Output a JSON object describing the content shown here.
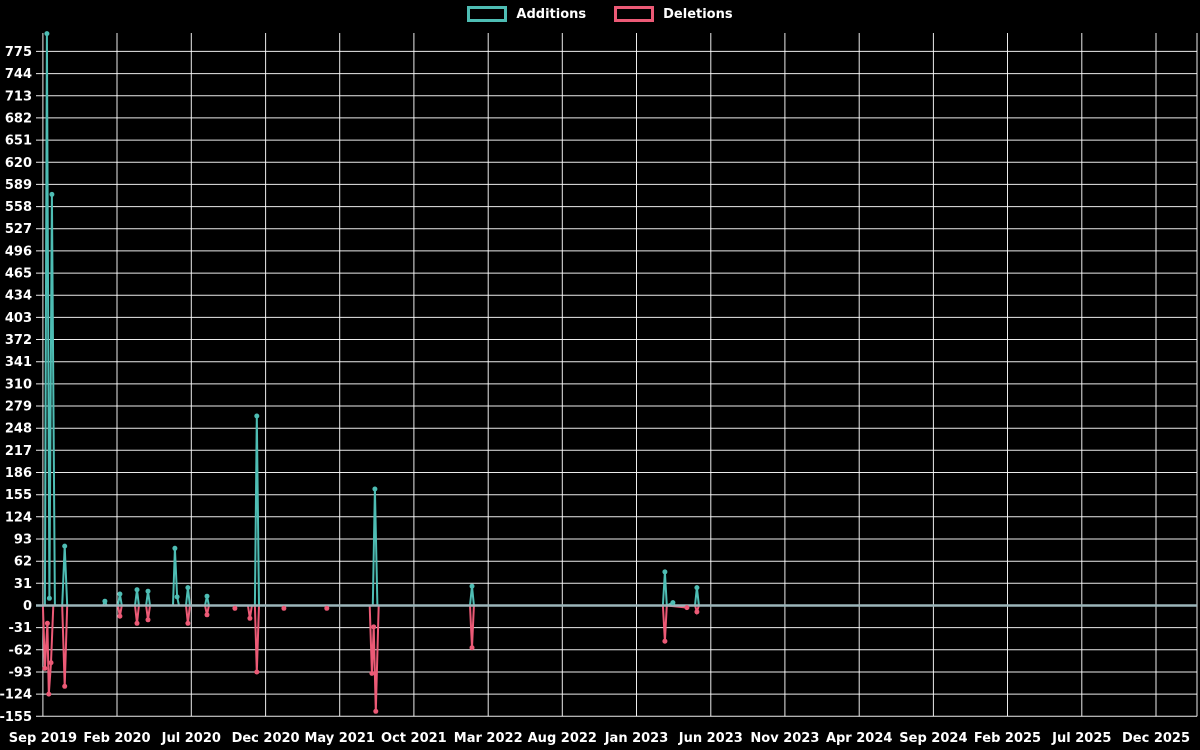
{
  "legend": {
    "items": [
      {
        "label": "Additions",
        "color": "#4ebdb4"
      },
      {
        "label": "Deletions",
        "color": "#ec5a76"
      }
    ]
  },
  "chart_data": {
    "type": "line",
    "title": "",
    "xlabel": "",
    "ylabel": "",
    "legend_position": "top",
    "grid": true,
    "background": "#000000",
    "grid_color": "rgba(255,255,255,0.92)",
    "zero_line_color": "#9cb6ba",
    "text_color": "#ffffff",
    "y_ticks": [
      775,
      744,
      713,
      682,
      651,
      620,
      589,
      558,
      527,
      496,
      465,
      434,
      403,
      372,
      341,
      310,
      279,
      248,
      217,
      186,
      155,
      124,
      93,
      62,
      31,
      0,
      -31,
      -62,
      -93,
      -124,
      -155
    ],
    "x_ticks": [
      {
        "label": "Sep 2019",
        "t": 2019.667
      },
      {
        "label": "Feb 2020",
        "t": 2020.083
      },
      {
        "label": "Jul 2020",
        "t": 2020.5
      },
      {
        "label": "Dec 2020",
        "t": 2020.917
      },
      {
        "label": "May 2021",
        "t": 2021.333
      },
      {
        "label": "Oct 2021",
        "t": 2021.75
      },
      {
        "label": "Mar 2022",
        "t": 2022.167
      },
      {
        "label": "Aug 2022",
        "t": 2022.583
      },
      {
        "label": "Jan 2023",
        "t": 2023.0
      },
      {
        "label": "Jun 2023",
        "t": 2023.417
      },
      {
        "label": "Nov 2023",
        "t": 2023.833
      },
      {
        "label": "Apr 2024",
        "t": 2024.25
      },
      {
        "label": "Sep 2024",
        "t": 2024.667
      },
      {
        "label": "Feb 2025",
        "t": 2025.083
      },
      {
        "label": "Jul 2025",
        "t": 2025.5
      },
      {
        "label": "Dec 2025",
        "t": 2025.917
      }
    ],
    "x_range": [
      2019.628,
      2026.147
    ],
    "y_range": [
      -163,
      805
    ],
    "series": [
      {
        "name": "Additions",
        "color": "#4ebdb4",
        "points": [
          [
            2019.628,
            0
          ],
          [
            2019.667,
            0
          ],
          [
            2019.678,
            0
          ],
          [
            2019.689,
            800
          ],
          [
            2019.703,
            10
          ],
          [
            2019.717,
            575
          ],
          [
            2019.734,
            0
          ],
          [
            2019.775,
            0
          ],
          [
            2019.789,
            83
          ],
          [
            2019.803,
            0
          ],
          [
            2020.005,
            0
          ],
          [
            2020.015,
            6
          ],
          [
            2020.025,
            0
          ],
          [
            2020.088,
            0
          ],
          [
            2020.099,
            16
          ],
          [
            2020.11,
            0
          ],
          [
            2020.184,
            0
          ],
          [
            2020.195,
            22
          ],
          [
            2020.206,
            0
          ],
          [
            2020.246,
            0
          ],
          [
            2020.257,
            20
          ],
          [
            2020.268,
            0
          ],
          [
            2020.397,
            0
          ],
          [
            2020.408,
            80
          ],
          [
            2020.42,
            12
          ],
          [
            2020.431,
            0
          ],
          [
            2020.47,
            0
          ],
          [
            2020.481,
            25
          ],
          [
            2020.492,
            0
          ],
          [
            2020.577,
            0
          ],
          [
            2020.588,
            13
          ],
          [
            2020.599,
            0
          ],
          [
            2020.857,
            0
          ],
          [
            2020.868,
            265
          ],
          [
            2020.88,
            0
          ],
          [
            2021.519,
            0
          ],
          [
            2021.531,
            163
          ],
          [
            2021.545,
            0
          ],
          [
            2022.065,
            0
          ],
          [
            2022.076,
            27
          ],
          [
            2022.087,
            0
          ],
          [
            2023.148,
            0
          ],
          [
            2023.159,
            47
          ],
          [
            2023.17,
            0
          ],
          [
            2023.204,
            4
          ],
          [
            2023.215,
            0
          ],
          [
            2023.328,
            0
          ],
          [
            2023.339,
            25
          ],
          [
            2023.35,
            0
          ],
          [
            2026.147,
            0
          ]
        ]
      },
      {
        "name": "Deletions",
        "color": "#ec5a76",
        "points": [
          [
            2019.628,
            0
          ],
          [
            2019.667,
            0
          ],
          [
            2019.678,
            -88
          ],
          [
            2019.692,
            -25
          ],
          [
            2019.7,
            -124
          ],
          [
            2019.712,
            -80
          ],
          [
            2019.725,
            0
          ],
          [
            2019.775,
            0
          ],
          [
            2019.789,
            -113
          ],
          [
            2019.803,
            0
          ],
          [
            2020.088,
            0
          ],
          [
            2020.099,
            -15
          ],
          [
            2020.11,
            0
          ],
          [
            2020.184,
            0
          ],
          [
            2020.195,
            -25
          ],
          [
            2020.206,
            0
          ],
          [
            2020.246,
            0
          ],
          [
            2020.257,
            -20
          ],
          [
            2020.268,
            0
          ],
          [
            2020.47,
            0
          ],
          [
            2020.481,
            -25
          ],
          [
            2020.492,
            0
          ],
          [
            2020.577,
            0
          ],
          [
            2020.588,
            -13
          ],
          [
            2020.599,
            0
          ],
          [
            2020.74,
            0
          ],
          [
            2020.745,
            -4
          ],
          [
            2020.752,
            0
          ],
          [
            2020.818,
            0
          ],
          [
            2020.829,
            -18
          ],
          [
            2020.84,
            0
          ],
          [
            2020.857,
            0
          ],
          [
            2020.868,
            -93
          ],
          [
            2020.88,
            0
          ],
          [
            2021.012,
            0
          ],
          [
            2021.02,
            -4
          ],
          [
            2021.03,
            0
          ],
          [
            2021.255,
            0
          ],
          [
            2021.261,
            -4
          ],
          [
            2021.27,
            0
          ],
          [
            2021.502,
            0
          ],
          [
            2021.514,
            -95
          ],
          [
            2021.524,
            -30
          ],
          [
            2021.536,
            -148
          ],
          [
            2021.552,
            0
          ],
          [
            2022.065,
            0
          ],
          [
            2022.076,
            -59
          ],
          [
            2022.087,
            0
          ],
          [
            2023.148,
            0
          ],
          [
            2023.159,
            -50
          ],
          [
            2023.17,
            0
          ],
          [
            2023.283,
            -3
          ],
          [
            2023.292,
            0
          ],
          [
            2023.328,
            0
          ],
          [
            2023.339,
            -9
          ],
          [
            2023.35,
            0
          ],
          [
            2026.147,
            0
          ]
        ]
      }
    ]
  }
}
